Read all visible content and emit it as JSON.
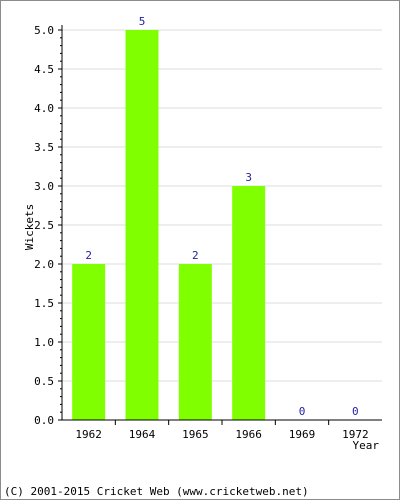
{
  "chart_data": {
    "type": "bar",
    "title": "",
    "xlabel": "Year",
    "ylabel": "Wickets",
    "categories": [
      "1962",
      "1964",
      "1965",
      "1966",
      "1969",
      "1972"
    ],
    "values": [
      2,
      5,
      2,
      3,
      0,
      0
    ],
    "data_labels": [
      "2",
      "5",
      "2",
      "3",
      "0",
      "0"
    ],
    "ylim": [
      0,
      5
    ],
    "yticks": [
      0,
      0.5,
      1,
      1.5,
      2,
      2.5,
      3,
      3.5,
      4,
      4.5,
      5
    ],
    "ytick_labels": [
      "0.0",
      "0.5",
      "1.0",
      "1.5",
      "2.0",
      "2.5",
      "3.0",
      "3.5",
      "4.0",
      "4.5",
      "5.0"
    ],
    "grid": true,
    "legend": "none",
    "colors": {
      "bar": "#80ff00",
      "data_label": "#1f1fa0",
      "grid": "#dcdcdc",
      "axis": "#000000",
      "text": "#000000"
    }
  },
  "footer": {
    "copyright": "(C) 2001-2015 Cricket Web (www.cricketweb.net)"
  }
}
